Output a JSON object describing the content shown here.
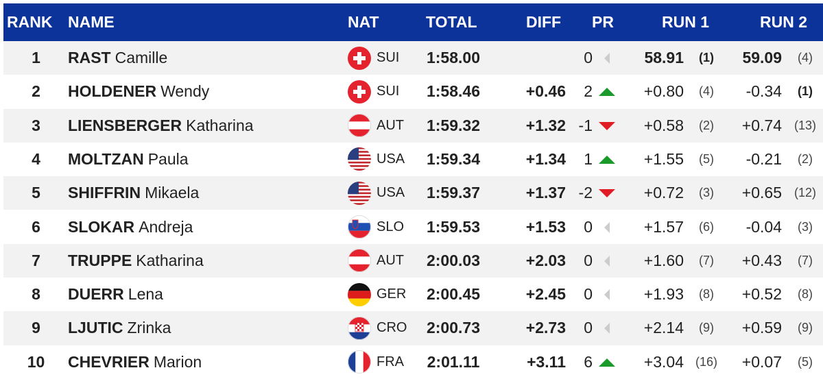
{
  "header": {
    "rank": "RANK",
    "name": "NAME",
    "nat": "NAT",
    "total": "TOTAL",
    "diff": "DIFF",
    "pr": "PR",
    "run1": "RUN 1",
    "run2": "RUN 2"
  },
  "rows": [
    {
      "rank": 1,
      "last": "RAST",
      "first": "Camille",
      "nat": "SUI",
      "total": "1:58.00",
      "pr": 0,
      "run1": "58.91",
      "run1_rank": "(1)",
      "run2": "59.09",
      "run2_rank": "(4)"
    },
    {
      "rank": 2,
      "last": "HOLDENER",
      "first": "Wendy",
      "nat": "SUI",
      "total": "1:58.46",
      "diff": "+0.46",
      "pr": 2,
      "run1": "+0.80",
      "run1_rank": "(4)",
      "run2": "-0.34",
      "run2_rank": "(1)"
    },
    {
      "rank": 3,
      "last": "LIENSBERGER",
      "first": "Katharina",
      "nat": "AUT",
      "total": "1:59.32",
      "diff": "+1.32",
      "pr": -1,
      "run1": "+0.58",
      "run1_rank": "(2)",
      "run2": "+0.74",
      "run2_rank": "(13)"
    },
    {
      "rank": 4,
      "last": "MOLTZAN",
      "first": "Paula",
      "nat": "USA",
      "total": "1:59.34",
      "diff": "+1.34",
      "pr": 1,
      "run1": "+1.55",
      "run1_rank": "(5)",
      "run2": "-0.21",
      "run2_rank": "(2)"
    },
    {
      "rank": 5,
      "last": "SHIFFRIN",
      "first": "Mikaela",
      "nat": "USA",
      "total": "1:59.37",
      "diff": "+1.37",
      "pr": -2,
      "run1": "+0.72",
      "run1_rank": "(3)",
      "run2": "+0.65",
      "run2_rank": "(12)"
    },
    {
      "rank": 6,
      "last": "SLOKAR",
      "first": "Andreja",
      "nat": "SLO",
      "total": "1:59.53",
      "diff": "+1.53",
      "pr": 0,
      "run1": "+1.57",
      "run1_rank": "(6)",
      "run2": "-0.04",
      "run2_rank": "(3)"
    },
    {
      "rank": 7,
      "last": "TRUPPE",
      "first": "Katharina",
      "nat": "AUT",
      "total": "2:00.03",
      "diff": "+2.03",
      "pr": 0,
      "run1": "+1.60",
      "run1_rank": "(7)",
      "run2": "+0.43",
      "run2_rank": "(7)"
    },
    {
      "rank": 8,
      "last": "DUERR",
      "first": "Lena",
      "nat": "GER",
      "total": "2:00.45",
      "diff": "+2.45",
      "pr": 0,
      "run1": "+1.93",
      "run1_rank": "(8)",
      "run2": "+0.52",
      "run2_rank": "(8)"
    },
    {
      "rank": 9,
      "last": "LJUTIC",
      "first": "Zrinka",
      "nat": "CRO",
      "total": "2:00.73",
      "diff": "+2.73",
      "pr": 0,
      "run1": "+2.14",
      "run1_rank": "(9)",
      "run2": "+0.59",
      "run2_rank": "(9)"
    },
    {
      "rank": 10,
      "last": "CHEVRIER",
      "first": "Marion",
      "nat": "FRA",
      "total": "2:01.11",
      "diff": "+3.11",
      "pr": 6,
      "run1": "+3.04",
      "run1_rank": "(16)",
      "run2": "+0.07",
      "run2_rank": "(5)"
    }
  ]
}
